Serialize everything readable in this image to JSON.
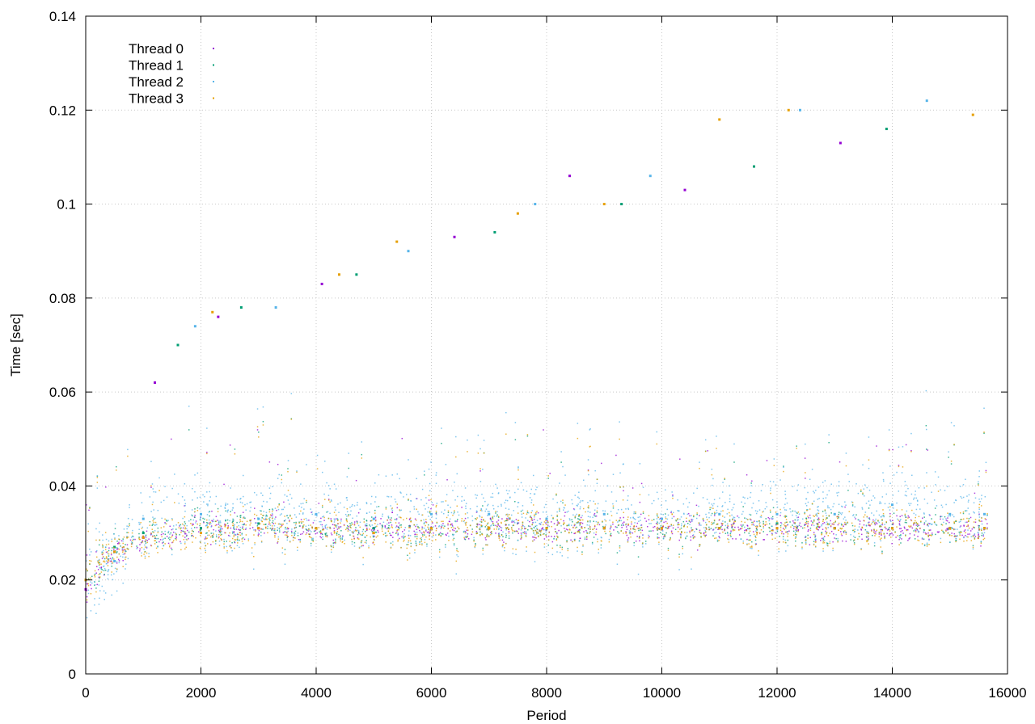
{
  "chart_data": {
    "type": "scatter",
    "title": "",
    "xlabel": "Period",
    "ylabel": "Time [sec]",
    "xlim": [
      0,
      16000
    ],
    "ylim": [
      0,
      0.14
    ],
    "xticks": [
      "0",
      "2000",
      "4000",
      "6000",
      "8000",
      "10000",
      "12000",
      "14000",
      "16000"
    ],
    "yticks": [
      "0",
      "0.02",
      "0.04",
      "0.06",
      "0.08",
      "0.1",
      "0.12",
      "0.14"
    ],
    "grid": true,
    "legend_position": "top-left",
    "series": [
      {
        "name": "Thread 0",
        "color": "#9400d3",
        "points": [
          [
            0,
            0.018
          ],
          [
            500,
            0.026
          ],
          [
            1000,
            0.029
          ],
          [
            2000,
            0.031
          ],
          [
            3000,
            0.031
          ],
          [
            4000,
            0.031
          ],
          [
            5000,
            0.031
          ],
          [
            6000,
            0.031
          ],
          [
            7000,
            0.031
          ],
          [
            8000,
            0.031
          ],
          [
            9000,
            0.031
          ],
          [
            10000,
            0.031
          ],
          [
            11000,
            0.031
          ],
          [
            12000,
            0.031
          ],
          [
            13000,
            0.031
          ],
          [
            14000,
            0.031
          ],
          [
            15000,
            0.031
          ],
          [
            15600,
            0.031
          ],
          [
            1200,
            0.062
          ],
          [
            2300,
            0.076
          ],
          [
            4100,
            0.083
          ],
          [
            6400,
            0.093
          ],
          [
            8400,
            0.106
          ],
          [
            10400,
            0.103
          ],
          [
            13100,
            0.113
          ]
        ]
      },
      {
        "name": "Thread 1",
        "color": "#009e73",
        "points": [
          [
            0,
            0.02
          ],
          [
            500,
            0.027
          ],
          [
            1000,
            0.03
          ],
          [
            2000,
            0.031
          ],
          [
            3000,
            0.032
          ],
          [
            4000,
            0.031
          ],
          [
            5000,
            0.031
          ],
          [
            6000,
            0.031
          ],
          [
            7000,
            0.031
          ],
          [
            8000,
            0.031
          ],
          [
            9000,
            0.031
          ],
          [
            10000,
            0.031
          ],
          [
            11000,
            0.031
          ],
          [
            12000,
            0.032
          ],
          [
            13000,
            0.031
          ],
          [
            14000,
            0.031
          ],
          [
            15000,
            0.031
          ],
          [
            15600,
            0.031
          ],
          [
            1600,
            0.07
          ],
          [
            2700,
            0.078
          ],
          [
            4700,
            0.085
          ],
          [
            7100,
            0.094
          ],
          [
            9300,
            0.1
          ],
          [
            11600,
            0.108
          ],
          [
            13900,
            0.116
          ]
        ]
      },
      {
        "name": "Thread 2",
        "color": "#56b4e9",
        "points": [
          [
            0,
            0.02
          ],
          [
            500,
            0.024
          ],
          [
            1000,
            0.033
          ],
          [
            2000,
            0.034
          ],
          [
            3000,
            0.033
          ],
          [
            4000,
            0.034
          ],
          [
            5000,
            0.033
          ],
          [
            6000,
            0.034
          ],
          [
            7000,
            0.034
          ],
          [
            8000,
            0.033
          ],
          [
            9000,
            0.034
          ],
          [
            10000,
            0.033
          ],
          [
            11000,
            0.034
          ],
          [
            12000,
            0.034
          ],
          [
            13000,
            0.034
          ],
          [
            14000,
            0.036
          ],
          [
            15000,
            0.034
          ],
          [
            15600,
            0.034
          ],
          [
            1900,
            0.074
          ],
          [
            3300,
            0.078
          ],
          [
            5600,
            0.09
          ],
          [
            7800,
            0.1
          ],
          [
            9800,
            0.106
          ],
          [
            12400,
            0.12
          ],
          [
            14600,
            0.122
          ]
        ]
      },
      {
        "name": "Thread 3",
        "color": "#e69f00",
        "points": [
          [
            0,
            0.02
          ],
          [
            500,
            0.026
          ],
          [
            1000,
            0.029
          ],
          [
            2000,
            0.03
          ],
          [
            3000,
            0.031
          ],
          [
            4000,
            0.031
          ],
          [
            5000,
            0.03
          ],
          [
            6000,
            0.031
          ],
          [
            7000,
            0.031
          ],
          [
            8000,
            0.031
          ],
          [
            9000,
            0.031
          ],
          [
            10000,
            0.031
          ],
          [
            11000,
            0.031
          ],
          [
            12000,
            0.031
          ],
          [
            13000,
            0.031
          ],
          [
            14000,
            0.031
          ],
          [
            15000,
            0.031
          ],
          [
            15600,
            0.031
          ],
          [
            2200,
            0.077
          ],
          [
            4400,
            0.085
          ],
          [
            5400,
            0.092
          ],
          [
            7500,
            0.098
          ],
          [
            9000,
            0.1
          ],
          [
            11000,
            0.118
          ],
          [
            12200,
            0.12
          ],
          [
            15400,
            0.119
          ]
        ]
      }
    ]
  }
}
